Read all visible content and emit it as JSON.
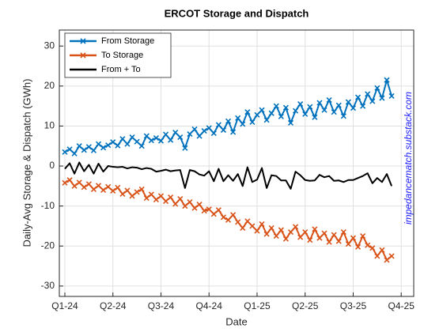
{
  "chart_data": {
    "type": "line",
    "title": "ERCOT Storage and Dispatch",
    "xlabel": "Date",
    "ylabel": "Daily-Avg Storage & Dispatch (GWh)",
    "annotation": "impedancematch.substack.com",
    "x": [
      0,
      0.1,
      0.2,
      0.3,
      0.4,
      0.5,
      0.6,
      0.7,
      0.8,
      0.9,
      1,
      1.1,
      1.2,
      1.3,
      1.4,
      1.5,
      1.6,
      1.7,
      1.8,
      1.9,
      2,
      2.1,
      2.2,
      2.3,
      2.4,
      2.5,
      2.6,
      2.7,
      2.8,
      2.9,
      3,
      3.1,
      3.2,
      3.3,
      3.4,
      3.5,
      3.6,
      3.7,
      3.8,
      3.9,
      4,
      4.1,
      4.2,
      4.3,
      4.4,
      4.5,
      4.6,
      4.7,
      4.8,
      4.9,
      5,
      5.1,
      5.2,
      5.3,
      5.4,
      5.5,
      5.6,
      5.7,
      5.8,
      5.9,
      6,
      6.1,
      6.2,
      6.3,
      6.4,
      6.5,
      6.6,
      6.7,
      6.8
    ],
    "series": [
      {
        "name": "From Storage",
        "color": "#0072BD",
        "marker": true,
        "values": [
          3.5,
          4.2,
          3.1,
          5.0,
          4.0,
          4.8,
          3.9,
          5.5,
          4.6,
          5.2,
          6.0,
          5.1,
          6.8,
          5.5,
          7.2,
          6.1,
          5.0,
          7.5,
          6.4,
          7.0,
          6.3,
          7.9,
          6.5,
          8.4,
          7.2,
          4.5,
          8.0,
          9.2,
          7.5,
          8.8,
          9.5,
          8.2,
          10.3,
          9.0,
          11.2,
          8.5,
          12.0,
          10.5,
          13.5,
          11.0,
          12.8,
          14.0,
          11.5,
          13.2,
          15.0,
          12.4,
          14.6,
          10.8,
          13.8,
          15.5,
          13.0,
          14.8,
          12.2,
          15.8,
          14.0,
          16.5,
          13.5,
          15.2,
          12.5,
          16.0,
          14.5,
          17.2,
          15.0,
          18.0,
          16.2,
          19.5,
          17.0,
          21.5,
          17.5
        ]
      },
      {
        "name": "To Storage",
        "color": "#D95319",
        "marker": true,
        "values": [
          -4.2,
          -3.5,
          -5.0,
          -4.1,
          -5.3,
          -4.5,
          -5.8,
          -4.9,
          -6.0,
          -5.2,
          -6.2,
          -5.4,
          -7.0,
          -6.1,
          -7.5,
          -6.5,
          -5.8,
          -8.0,
          -7.1,
          -8.4,
          -7.5,
          -8.8,
          -7.8,
          -9.5,
          -8.2,
          -10.0,
          -9.0,
          -10.5,
          -9.6,
          -11.2,
          -10.8,
          -12.0,
          -11.0,
          -12.8,
          -13.5,
          -12.2,
          -14.0,
          -15.5,
          -13.8,
          -15.0,
          -16.2,
          -14.5,
          -17.0,
          -15.5,
          -17.5,
          -16.0,
          -18.2,
          -16.5,
          -15.2,
          -17.8,
          -16.5,
          -18.5,
          -15.8,
          -18.0,
          -16.8,
          -19.0,
          -17.2,
          -18.8,
          -16.5,
          -19.5,
          -18.0,
          -20.2,
          -17.5,
          -19.8,
          -20.5,
          -22.5,
          -21.0,
          -23.5,
          -22.5
        ]
      },
      {
        "name": "From + To",
        "color": "#000000",
        "marker": false,
        "values": [
          -0.7,
          0.7,
          -1.9,
          0.9,
          -1.3,
          0.3,
          -1.9,
          0.6,
          -1.4,
          0,
          -0.2,
          -0.3,
          -0.2,
          -0.6,
          -0.3,
          -0.4,
          -0.8,
          -0.5,
          -0.7,
          -1.4,
          -1.2,
          -0.9,
          -1.3,
          -1.1,
          -1.0,
          -5.5,
          -1.0,
          -1.3,
          -2.1,
          -2.4,
          -1.3,
          -3.8,
          -0.7,
          -3.8,
          -2.3,
          -3.7,
          -2.0,
          -5.0,
          -0.3,
          -4.0,
          -3.4,
          -0.5,
          -5.5,
          -2.3,
          -2.5,
          -3.6,
          -3.6,
          -5.7,
          -1.4,
          -2.3,
          -3.5,
          -3.7,
          -3.6,
          -2.2,
          -2.8,
          -2.5,
          -3.7,
          -3.6,
          -4.0,
          -3.5,
          -3.5,
          -3.0,
          -2.5,
          -1.8,
          -4.3,
          -3.0,
          -4.0,
          -2.0,
          -5.0
        ]
      }
    ],
    "xlim": [
      -0.115,
      7.26
    ],
    "xticks": [
      {
        "value": 0,
        "label": "Q1-24"
      },
      {
        "value": 1,
        "label": "Q2-24"
      },
      {
        "value": 2,
        "label": "Q3-24"
      },
      {
        "value": 3,
        "label": "Q4-24"
      },
      {
        "value": 4,
        "label": "Q1-25"
      },
      {
        "value": 5,
        "label": "Q2-25"
      },
      {
        "value": 6,
        "label": "Q3-25"
      },
      {
        "value": 7,
        "label": "Q4-25"
      }
    ],
    "ylim": [
      -32.6,
      34
    ],
    "yticks": [
      -30,
      -20,
      -10,
      0,
      10,
      20,
      30
    ],
    "grid": true,
    "legend": "northwest"
  }
}
